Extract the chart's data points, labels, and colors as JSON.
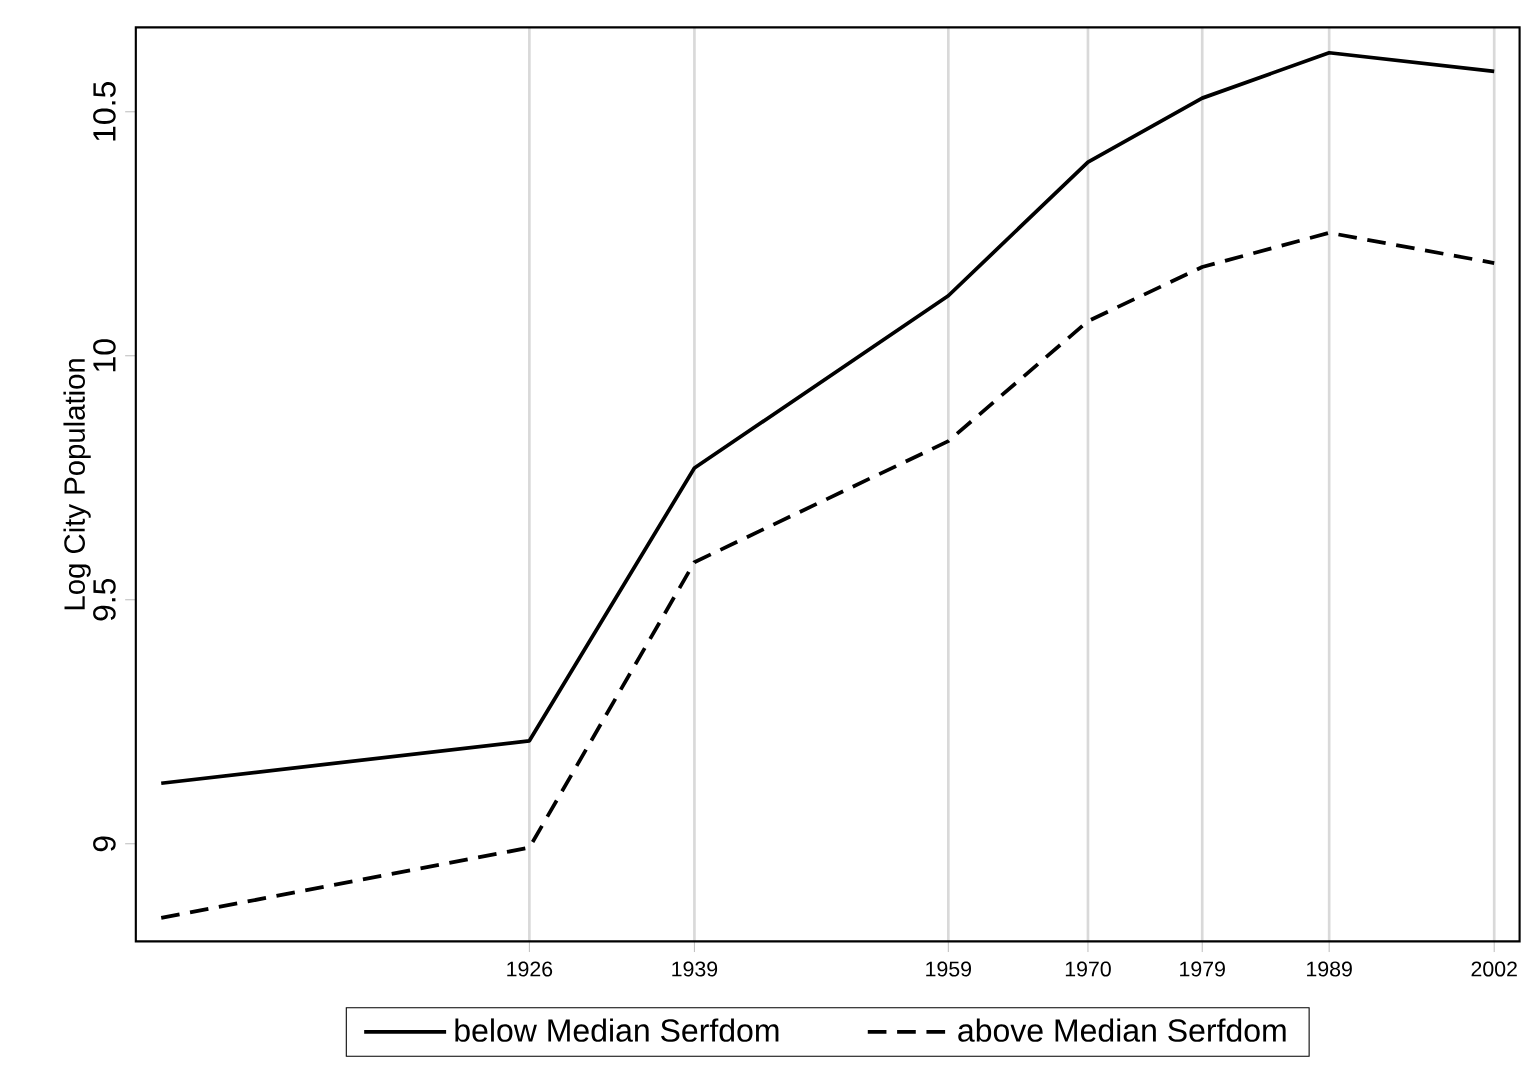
{
  "chart_data": {
    "type": "line",
    "ylabel": "Log City Population",
    "x": [
      1897,
      1926,
      1939,
      1959,
      1970,
      1979,
      1989,
      2002
    ],
    "xlim": [
      1895,
      2004
    ],
    "ylim": [
      8.8,
      10.673
    ],
    "xticks": [
      1926,
      1939,
      1959,
      1970,
      1979,
      1989,
      2002
    ],
    "yticks": [
      9,
      9.5,
      10,
      10.5
    ],
    "grid": "x",
    "legend": "bottom",
    "series": [
      {
        "name": "below Median Serfdom",
        "color": "#000000",
        "line_style": "solid",
        "values": [
          9.124,
          9.211,
          9.77,
          10.123,
          10.397,
          10.528,
          10.621,
          10.583
        ]
      },
      {
        "name": "above Median Serfdom",
        "color": "#000000",
        "line_style": "dashed",
        "values": [
          8.848,
          8.992,
          9.577,
          9.825,
          10.071,
          10.182,
          10.252,
          10.19
        ]
      }
    ]
  }
}
